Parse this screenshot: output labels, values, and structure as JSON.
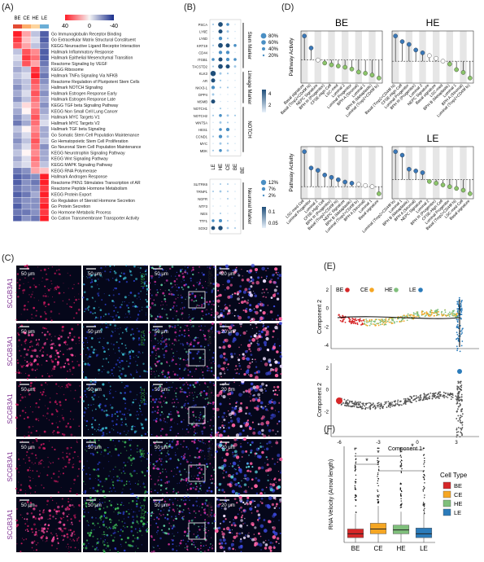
{
  "panels": {
    "a": "(A)",
    "b": "(B)",
    "c": "(C)",
    "d": "(D)",
    "e": "(E)",
    "f": "(F)"
  },
  "panel_a": {
    "columns": [
      "BE",
      "CE",
      "HE",
      "LE"
    ],
    "legend_ticks": [
      "40",
      "0",
      "-40"
    ],
    "rows": [
      "Go Immunoglobulin Receptor Binding",
      "Go Extracellular Matrix Structural Constituent",
      "KEGG Neuroactive Ligand Receptor Interaction",
      "Hallmark Inflammatory Response",
      "Hallmark Epithelial Mesenchymal Transition",
      "Reactome Signaling by VEGF",
      "KEGG Ribosome",
      "Hallmark TNFa Signaling Via NFKB",
      "Reactome Regulation of Pluripotent Stem Cells",
      "Hallmark NOTCH Signaling",
      "Hallmark Estrogen Response Early",
      "Hallmark Estrogen Response Late",
      "KEGG TGF beta Signaling Pathway",
      "KEGG Non Small Cell Lung Cancer",
      "Hallmark MYC Targets V1",
      "Hallmark MYC Targets V2",
      "Hallmark TGF beta Signaling",
      "Go Somatic Stem Cell Population Maintenance",
      "Go Hematopoietic Stem Cell Proliferation",
      "Go Neuronal Stem Cell Population Maintenance",
      "KEGG Neurotrophin Signaling Pathway",
      "KEGG Wnt Signaling Pathway",
      "KEGG MAPK Signaling Pathway",
      "KEGG RNA Polymerase",
      "Hallmark Androgen Response",
      "Reactome PKN1 Stimulates Transcription of AR",
      "Reactome Peptide Hormone Metabolism",
      "KEGG Protein Export",
      "Go Regulation of Steroid Hormone Secretion",
      "Go Protein Secretion",
      "Go Hormone Metabolic Process",
      "Go Cation Transmembrane Transporter Activity"
    ],
    "values": [
      [
        40,
        15,
        -10,
        -30
      ],
      [
        35,
        10,
        -5,
        -30
      ],
      [
        30,
        15,
        -10,
        -25
      ],
      [
        -10,
        30,
        20,
        -30
      ],
      [
        -5,
        35,
        25,
        -30
      ],
      [
        -10,
        30,
        15,
        -25
      ],
      [
        -15,
        -10,
        35,
        -20
      ],
      [
        -10,
        -5,
        40,
        -25
      ],
      [
        -15,
        -10,
        30,
        -20
      ],
      [
        -20,
        -10,
        25,
        -15
      ],
      [
        -15,
        -5,
        30,
        -20
      ],
      [
        -20,
        -10,
        25,
        -15
      ],
      [
        -10,
        5,
        20,
        -20
      ],
      [
        -15,
        0,
        25,
        -15
      ],
      [
        -20,
        -10,
        30,
        -10
      ],
      [
        -25,
        -15,
        25,
        -5
      ],
      [
        -10,
        0,
        20,
        -15
      ],
      [
        -15,
        -5,
        25,
        -15
      ],
      [
        -20,
        -10,
        30,
        -10
      ],
      [
        -15,
        -5,
        25,
        -20
      ],
      [
        -10,
        0,
        20,
        -15
      ],
      [
        -15,
        -5,
        25,
        -15
      ],
      [
        -10,
        -5,
        20,
        -10
      ],
      [
        -25,
        -20,
        15,
        10
      ],
      [
        -30,
        -25,
        -20,
        40
      ],
      [
        -30,
        -20,
        -25,
        40
      ],
      [
        -25,
        -20,
        -20,
        35
      ],
      [
        -30,
        -25,
        -15,
        40
      ],
      [
        -25,
        -20,
        -20,
        35
      ],
      [
        -30,
        -20,
        -20,
        40
      ],
      [
        -25,
        -25,
        -20,
        35
      ],
      [
        -30,
        -20,
        -25,
        40
      ]
    ]
  },
  "panel_b": {
    "columns": [
      "LE",
      "HE",
      "CE",
      "BE"
    ],
    "groups": [
      "Stem Marker",
      "Lineage Marker",
      "NOTCH",
      "Neuronal Marker"
    ],
    "genes_top": [
      "PSCA",
      "LY6E",
      "LY6D",
      "KRT19",
      "CD44",
      "ITGB1",
      "TACSTD2",
      "KLK3",
      "AR",
      "NKX3-1",
      "DPP4",
      "MSMB",
      "NOTCH1",
      "NOTCH2",
      "WNT5A",
      "HES1",
      "CCND1",
      "MYC",
      "MDK"
    ],
    "genes_bottom": [
      "SLITRK6",
      "TRNP1",
      "NGFR",
      "NTF3",
      "NES",
      "TTF1",
      "SOX2"
    ],
    "size_legend_top": [
      "80%",
      "60%",
      "40%",
      "20%"
    ],
    "size_legend_bottom": [
      "12%",
      "7%",
      "2%"
    ],
    "color_legend_top": [
      "4",
      "2"
    ],
    "color_legend_bottom": [
      "0.1",
      "0.05"
    ],
    "dots_top": [
      [
        0.3,
        0.8,
        0.5,
        0.2
      ],
      [
        0.2,
        0.7,
        0.4,
        0.2
      ],
      [
        0.2,
        0.6,
        0.3,
        0.1
      ],
      [
        0.3,
        0.8,
        0.7,
        0.5
      ],
      [
        0.2,
        0.6,
        0.6,
        0.2
      ],
      [
        0.5,
        0.7,
        0.6,
        0.5
      ],
      [
        0.3,
        0.8,
        0.7,
        0.4
      ],
      [
        0.9,
        0.4,
        0.3,
        0.2
      ],
      [
        0.7,
        0.3,
        0.2,
        0.2
      ],
      [
        0.6,
        0.3,
        0.3,
        0.2
      ],
      [
        0.4,
        0.2,
        0.1,
        0.1
      ],
      [
        0.7,
        0.2,
        0.1,
        0.1
      ],
      [
        0.2,
        0.3,
        0.2,
        0.2
      ],
      [
        0.3,
        0.5,
        0.4,
        0.3
      ],
      [
        0.2,
        0.4,
        0.3,
        0.2
      ],
      [
        0.2,
        0.5,
        0.6,
        0.2
      ],
      [
        0.3,
        0.6,
        0.4,
        0.2
      ],
      [
        0.2,
        0.4,
        0.3,
        0.2
      ],
      [
        0.3,
        0.5,
        0.4,
        0.2
      ]
    ],
    "dots_bottom": [
      [
        0.2,
        0.3,
        0.3,
        0.2
      ],
      [
        0.3,
        0.4,
        0.3,
        0.2
      ],
      [
        0.2,
        0.2,
        0.3,
        0.1
      ],
      [
        0.2,
        0.2,
        0.2,
        0.1
      ],
      [
        0.2,
        0.3,
        0.2,
        0.2
      ],
      [
        0.5,
        0.6,
        0.3,
        0.2
      ],
      [
        0.7,
        0.8,
        0.4,
        0.3
      ]
    ]
  },
  "panel_c": {
    "rows": [
      {
        "red": "SCGB3A1",
        "green": "LY6D"
      },
      {
        "red": "SCGB3A1",
        "green": "PSCA"
      },
      {
        "red": "SCGB3A1",
        "green": "SOX2"
      },
      {
        "red": "SCGB3A1",
        "green": "AR"
      },
      {
        "red": "SCGB3A1",
        "green": "KLK3"
      }
    ],
    "merge_label": "Merge",
    "scale_small": "50 μm",
    "scale_zoom": "20 μm"
  },
  "panel_d": {
    "ylabel": "Pathway Activity",
    "charts": [
      {
        "title": "BE",
        "labels": [
          "Basal signature",
          "Basal (Trop2+CD49f hi)",
          "NEPC Signature",
          "BPH III (Progenitor)",
          "CFSE-High Cell",
          "LSC-med",
          "Luminal 2",
          "Luminal Progenitor",
          "BPH A (Stromal)",
          "Luminal 1",
          "BPH B (Metaplastic)",
          "Luminal (Trop2+CD49f lo)"
        ],
        "values": [
          0.04,
          0.02,
          0.0,
          -0.005,
          -0.008,
          -0.01,
          -0.012,
          -0.015,
          -0.02,
          -0.022,
          -0.025,
          -0.03
        ]
      },
      {
        "title": "HE",
        "labels": [
          "Basal (Trop2+CD49f hi)",
          "CFSE-High Cell",
          "Luminal Progenitor",
          "BPH III (Progenitor)",
          "Luminal 2",
          "NEPC Signature",
          "Basal signature",
          "LSC-med",
          "BPH B (Metaplastic)",
          "Luminal 1",
          "BPH A (Stromal)",
          "Luminal (Trop2+CD49f lo)"
        ],
        "values": [
          0.045,
          0.035,
          0.03,
          0.02,
          0.015,
          0.01,
          0.005,
          0.0,
          -0.005,
          -0.015,
          -0.02,
          -0.03
        ]
      },
      {
        "title": "CE",
        "labels": [
          "LSC-med Cell",
          "Luminal Progenitor",
          "Luminal 2",
          "CFSE-High Cell",
          "BPH III (Progenitor)",
          "Basal (Trop2+CD49f hi)",
          "NEPC Signature",
          "BPH B (Metaplastic)",
          "Luminal (Trop2+CD49f lo)",
          "BPH A (Stromal)",
          "Luminal 1",
          "Basal signature"
        ],
        "values": [
          0.15,
          0.08,
          0.07,
          0.05,
          0.04,
          0.03,
          0.02,
          0.015,
          0.01,
          0.005,
          0.0,
          -0.03
        ]
      },
      {
        "title": "LE",
        "labels": [
          "Luminal (Trop2+CD49f lo)",
          "Luminal 1",
          "BPH B (Metaplastic)",
          "BPH A (Stromal)",
          "NEPC Signature",
          "Luminal 2",
          "BPH III (Progenitor)",
          "CFSE-High Cell",
          "Luminal Progenitor",
          "Basal (Trop2+CD49f hi)",
          "LSC-med Cell",
          "Basal signature"
        ],
        "values": [
          0.08,
          0.07,
          0.03,
          0.025,
          0.02,
          -0.005,
          -0.01,
          -0.015,
          -0.02,
          -0.025,
          -0.03,
          -0.04
        ]
      }
    ]
  },
  "panel_e": {
    "legend": [
      {
        "name": "BE",
        "color": "#d62728"
      },
      {
        "name": "CE",
        "color": "#f5a623"
      },
      {
        "name": "HE",
        "color": "#7fbf7b"
      },
      {
        "name": "LE",
        "color": "#2b7bba"
      }
    ],
    "xlabel": "Component 1",
    "ylabel": "Component 2",
    "x_ticks": [
      "-6",
      "-3",
      "0",
      "3"
    ],
    "y_ticks_top": [
      "2",
      "0",
      "-2",
      "-4"
    ],
    "y_ticks_bottom": [
      "2",
      "0",
      "-2",
      "-4"
    ]
  },
  "chart_data": {
    "type": "box",
    "ylabel": "RNA Velocity (Arrow length)",
    "categories": [
      "BE",
      "CE",
      "HE",
      "LE"
    ],
    "colors": [
      "#d62728",
      "#f5a623",
      "#7fbf7b",
      "#2b7bba"
    ],
    "ylim": [
      0,
      1.0
    ],
    "boxes": [
      {
        "name": "BE",
        "q1": 0.05,
        "median": 0.09,
        "q3": 0.14,
        "whisker_low": 0.0,
        "whisker_high": 0.3
      },
      {
        "name": "CE",
        "q1": 0.09,
        "median": 0.14,
        "q3": 0.2,
        "whisker_low": 0.0,
        "whisker_high": 0.38
      },
      {
        "name": "HE",
        "q1": 0.09,
        "median": 0.13,
        "q3": 0.18,
        "whisker_low": 0.0,
        "whisker_high": 0.32
      },
      {
        "name": "LE",
        "q1": 0.05,
        "median": 0.09,
        "q3": 0.15,
        "whisker_low": 0.0,
        "whisker_high": 0.3
      }
    ],
    "significance": [
      "*",
      "*",
      "*",
      "*"
    ],
    "legend_title": "Cell Type",
    "legend": [
      "BE",
      "CE",
      "HE",
      "LE"
    ]
  }
}
